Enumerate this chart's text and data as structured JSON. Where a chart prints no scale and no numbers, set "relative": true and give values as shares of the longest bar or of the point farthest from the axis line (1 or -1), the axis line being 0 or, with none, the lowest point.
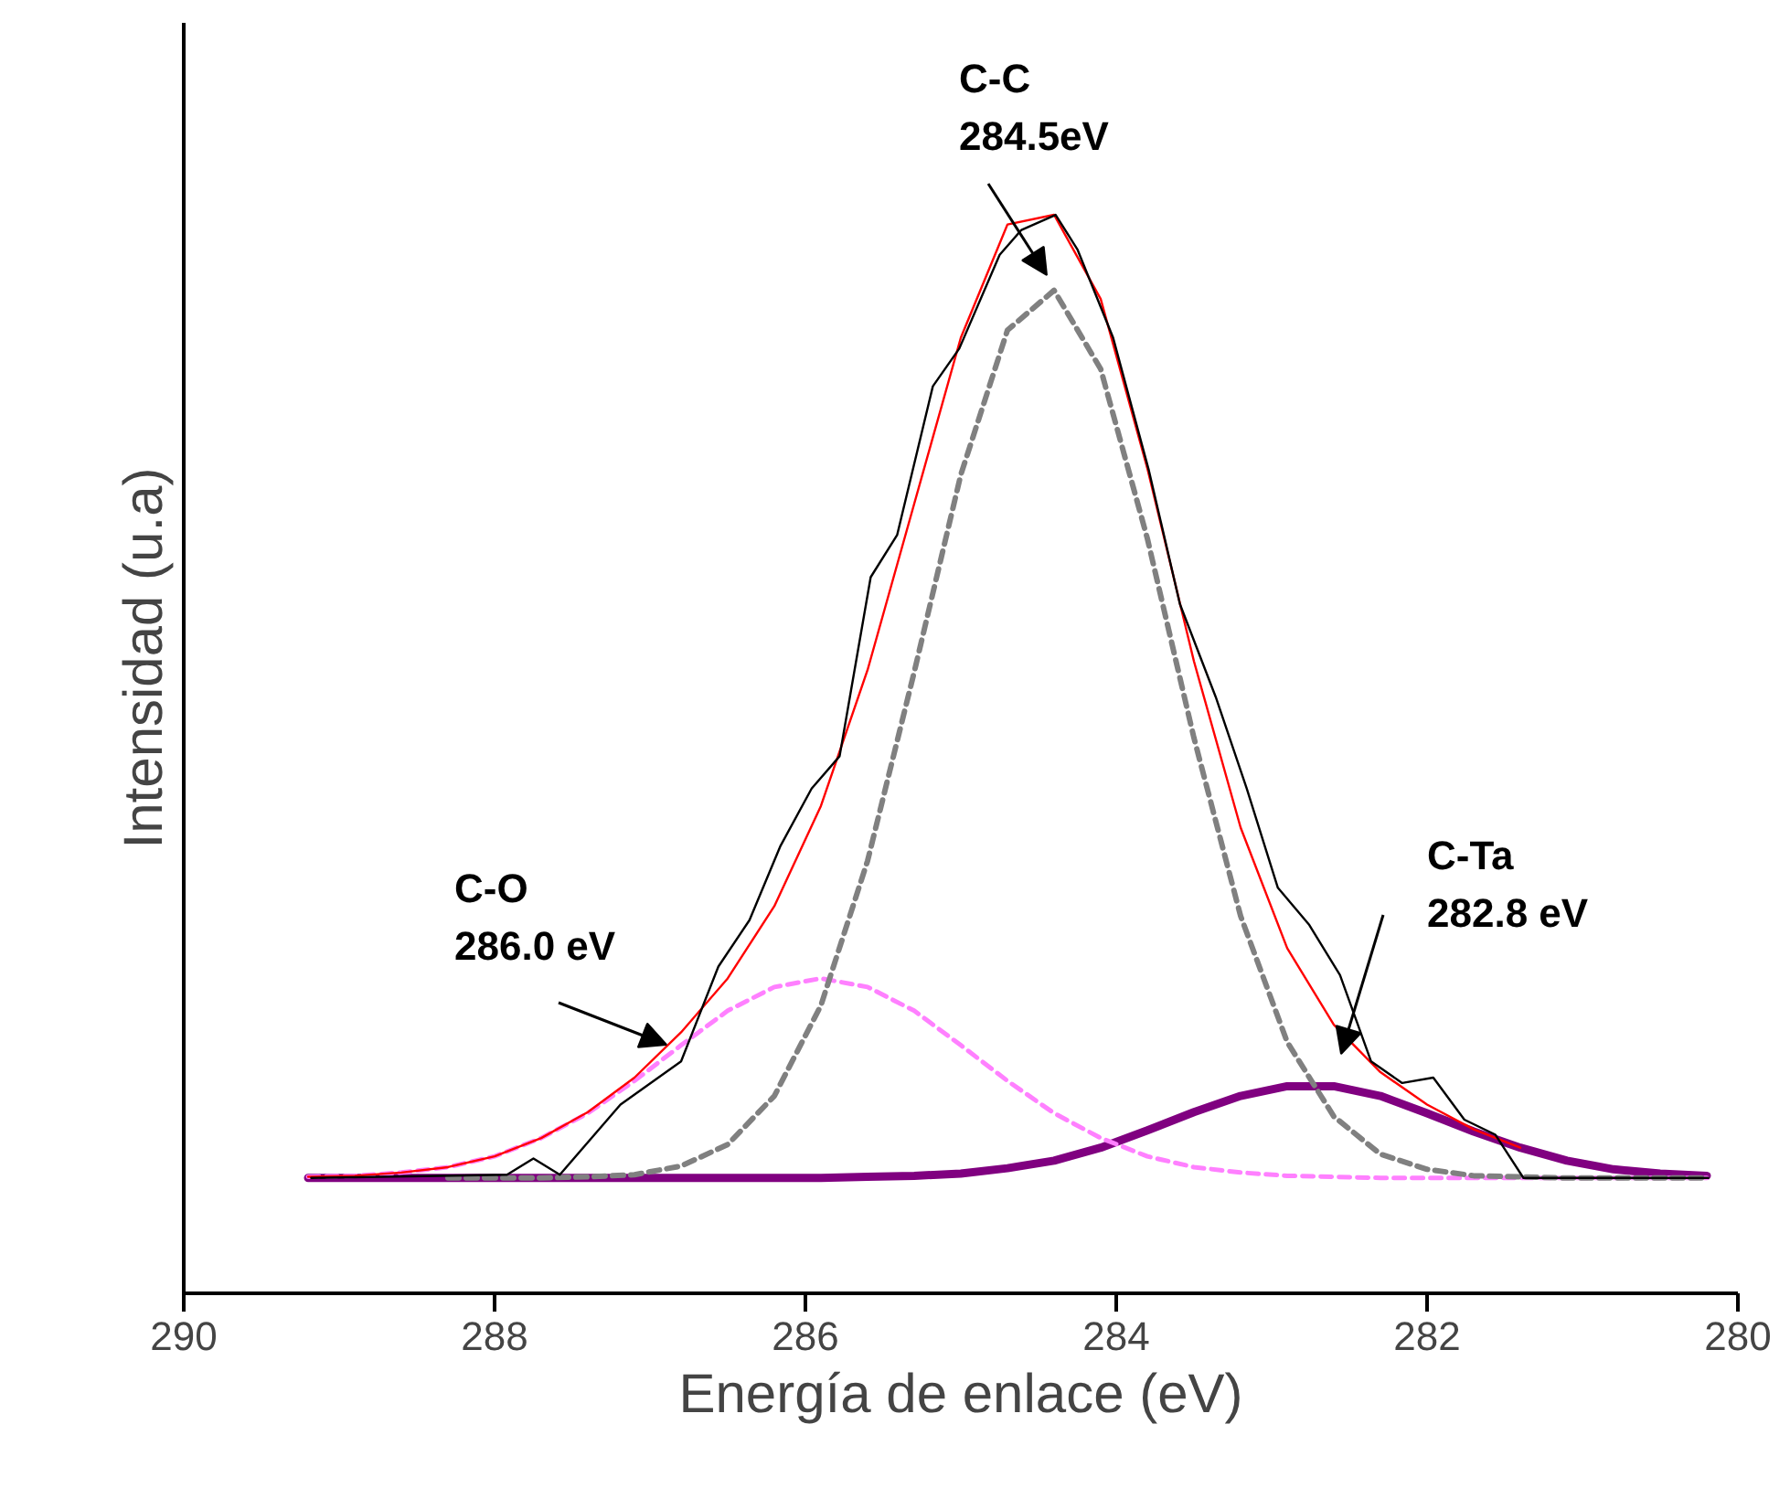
{
  "chart_data": {
    "type": "line",
    "relative": true,
    "xlabel": "Energía de enlace (eV)",
    "ylabel": "Intensidad (u.a)",
    "xlim": [
      290,
      280
    ],
    "xticks": [
      290,
      288,
      286,
      284,
      282,
      280
    ],
    "tick_labels": "x",
    "grid": false,
    "marker": "none",
    "x": [
      289.2,
      288.9,
      288.6,
      288.3,
      288.0,
      287.7,
      287.4,
      287.1,
      286.8,
      286.5,
      286.2,
      285.9,
      285.6,
      285.3,
      285.0,
      284.7,
      284.4,
      284.1,
      283.8,
      283.5,
      283.2,
      282.9,
      282.6,
      282.3,
      282.0,
      281.7,
      281.4,
      281.1,
      280.8,
      280.5,
      280.2
    ],
    "series": [
      {
        "color": "#000000",
        "line_style": "solid",
        "x": [
          289.18,
          287.92,
          287.75,
          287.58,
          287.19,
          286.8,
          286.56,
          286.36,
          286.16,
          285.96,
          285.78,
          285.58,
          285.41,
          285.18,
          285.01,
          284.75,
          284.61,
          284.39,
          284.25,
          284.02,
          283.79,
          283.59,
          283.36,
          283.16,
          282.96,
          282.76,
          282.56,
          282.36,
          282.16,
          281.96,
          281.76,
          281.56,
          281.38,
          280.19
        ],
        "values": [
          0.107,
          0.11,
          0.125,
          0.11,
          0.175,
          0.215,
          0.303,
          0.346,
          0.415,
          0.468,
          0.498,
          0.664,
          0.703,
          0.841,
          0.876,
          0.963,
          0.986,
          1.0,
          0.968,
          0.886,
          0.763,
          0.639,
          0.553,
          0.468,
          0.376,
          0.342,
          0.295,
          0.215,
          0.195,
          0.2,
          0.161,
          0.147,
          0.107,
          0.107
        ]
      },
      {
        "color": "#ff0000",
        "line_style": "solid",
        "values": [
          0.108,
          0.109,
          0.112,
          0.117,
          0.127,
          0.144,
          0.168,
          0.2,
          0.242,
          0.292,
          0.359,
          0.452,
          0.578,
          0.732,
          0.886,
          0.991,
          1.0,
          0.922,
          0.765,
          0.586,
          0.432,
          0.32,
          0.249,
          0.205,
          0.175,
          0.152,
          0.135,
          null,
          null,
          null,
          null
        ]
      },
      {
        "color": "#808080",
        "line_style": "dashed",
        "values": [
          null,
          null,
          null,
          0.107,
          0.107,
          0.107,
          0.108,
          0.11,
          0.118,
          0.138,
          0.183,
          0.267,
          0.401,
          0.576,
          0.759,
          0.893,
          0.93,
          0.857,
          0.7,
          0.515,
          0.35,
          0.233,
          0.164,
          0.129,
          0.115,
          0.109,
          0.108,
          0.107,
          0.107,
          0.107,
          0.107
        ]
      },
      {
        "color": "#ff80ff",
        "line_style": "dashed",
        "values": [
          0.108,
          0.109,
          0.112,
          0.117,
          0.127,
          0.144,
          0.167,
          0.197,
          0.23,
          0.262,
          0.284,
          0.292,
          0.284,
          0.262,
          0.23,
          0.197,
          0.167,
          0.144,
          0.127,
          0.117,
          0.112,
          0.109,
          0.108,
          0.107,
          0.107,
          0.107,
          0.107,
          0.107,
          0.107,
          0.107,
          0.107
        ]
      },
      {
        "color": "#800080",
        "line_style": "solid",
        "values": [
          0.107,
          0.107,
          0.107,
          0.107,
          0.107,
          0.107,
          0.107,
          0.107,
          0.107,
          0.107,
          0.107,
          0.107,
          0.108,
          0.109,
          0.111,
          0.116,
          0.123,
          0.135,
          0.151,
          0.168,
          0.183,
          0.192,
          0.192,
          0.183,
          0.167,
          0.15,
          0.135,
          0.123,
          0.115,
          0.111,
          0.109
        ]
      }
    ],
    "annotations": [
      "C-C\n284.5eV",
      "C-O\n286.0 eV",
      "C-Ta\n282.8 eV"
    ]
  }
}
